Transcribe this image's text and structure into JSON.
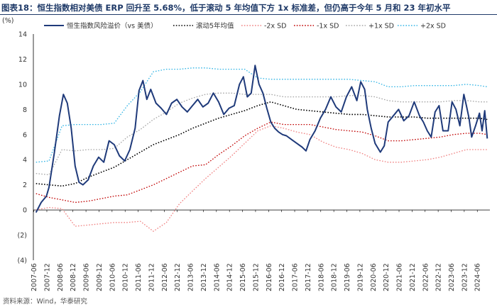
{
  "title": "图表18：恒生指数相对美债 ERP 回升至 5.68%，低于滚动 5 年均值下方 1x 标准差，但仍高于今年 5 月和 23 年初水平",
  "source": "资料来源：Wind，华泰研究",
  "colors": {
    "erp": "#1f3a7a",
    "mean": "#000000",
    "minus2": "#f08080",
    "minus1": "#c00000",
    "plus1": "#a6a6a6",
    "plus2": "#33b5e5",
    "title": "#1f3a68"
  },
  "chart_data": {
    "type": "line",
    "ylabel": "(%)",
    "ylim": [
      -4,
      14
    ],
    "yticks": [
      "(4)",
      "(2)",
      "0",
      "2",
      "4",
      "6",
      "8",
      "10",
      "12",
      "14"
    ],
    "x_tick_labels": [
      "2007-06",
      "2007-12",
      "2008-06",
      "2008-12",
      "2009-06",
      "2009-12",
      "2010-06",
      "2010-12",
      "2011-06",
      "2011-12",
      "2012-06",
      "2012-12",
      "2013-06",
      "2013-12",
      "2014-06",
      "2014-12",
      "2015-06",
      "2015-12",
      "2016-06",
      "2016-12",
      "2017-06",
      "2017-12",
      "2018-06",
      "2018-12",
      "2019-06",
      "2019-12",
      "2020-06",
      "2020-12",
      "2021-06",
      "2021-12",
      "2022-06",
      "2022-12",
      "2023-06",
      "2023-12",
      "2024-06"
    ],
    "grid": false,
    "legend_position": "top",
    "series": [
      {
        "name": "恒生指数风险溢价（vs 美债）",
        "key": "erp",
        "style": "solid",
        "x": [
          2007.5,
          2007.7,
          2007.9,
          2008.0,
          2008.2,
          2008.4,
          2008.55,
          2008.7,
          2008.85,
          2009.0,
          2009.15,
          2009.3,
          2009.5,
          2009.7,
          2009.9,
          2010.1,
          2010.3,
          2010.5,
          2010.7,
          2010.9,
          2011.1,
          2011.3,
          2011.45,
          2011.6,
          2011.75,
          2011.9,
          2012.1,
          2012.3,
          2012.5,
          2012.7,
          2012.9,
          2013.1,
          2013.3,
          2013.5,
          2013.7,
          2013.9,
          2014.1,
          2014.3,
          2014.5,
          2014.7,
          2014.9,
          2015.1,
          2015.3,
          2015.45,
          2015.6,
          2015.75,
          2015.9,
          2016.05,
          2016.2,
          2016.35,
          2016.5,
          2016.65,
          2016.8,
          2016.95,
          2017.1,
          2017.3,
          2017.5,
          2017.7,
          2017.85,
          2018.0,
          2018.2,
          2018.4,
          2018.6,
          2018.8,
          2019.0,
          2019.2,
          2019.4,
          2019.6,
          2019.8,
          2019.95,
          2020.1,
          2020.2,
          2020.35,
          2020.5,
          2020.7,
          2020.85,
          2021.0,
          2021.2,
          2021.4,
          2021.6,
          2021.8,
          2022.0,
          2022.2,
          2022.35,
          2022.5,
          2022.65,
          2022.8,
          2022.95,
          2023.1,
          2023.3,
          2023.45,
          2023.6,
          2023.75,
          2023.9,
          2024.0,
          2024.1,
          2024.2,
          2024.35,
          2024.5,
          2024.6,
          2024.7,
          2024.8
        ],
        "values": [
          -0.2,
          0.6,
          1.1,
          1.8,
          4.5,
          7.5,
          9.2,
          8.5,
          6.5,
          3.5,
          2.2,
          2.0,
          2.4,
          3.5,
          4.2,
          3.8,
          5.5,
          5.2,
          4.3,
          3.9,
          4.8,
          6.5,
          9.5,
          10.3,
          8.8,
          9.6,
          8.5,
          8.1,
          7.6,
          8.5,
          8.8,
          8.2,
          7.8,
          8.3,
          8.8,
          8.2,
          8.5,
          9.3,
          8.6,
          7.6,
          8.1,
          8.3,
          10.0,
          10.6,
          9.0,
          9.3,
          11.5,
          10.0,
          9.3,
          8.1,
          7.0,
          6.5,
          6.2,
          6.0,
          5.9,
          5.6,
          5.3,
          5.0,
          4.7,
          5.6,
          6.3,
          7.3,
          8.0,
          9.0,
          8.2,
          7.8,
          9.0,
          9.8,
          8.7,
          10.2,
          9.6,
          8.0,
          6.5,
          5.3,
          4.6,
          5.1,
          7.0,
          7.5,
          8.0,
          7.1,
          7.5,
          8.6,
          7.5,
          7.0,
          6.3,
          5.8,
          7.8,
          8.3,
          6.3,
          6.3,
          8.6,
          8.0,
          6.7,
          9.2,
          8.3,
          7.3,
          5.8,
          6.7,
          7.7,
          6.3,
          7.9,
          5.68
        ]
      },
      {
        "name": "滚动5年均值",
        "key": "mean",
        "style": "dotted",
        "x": [
          2007.5,
          2008.0,
          2008.5,
          2009.0,
          2009.5,
          2010.0,
          2010.5,
          2011.0,
          2011.5,
          2012.0,
          2012.5,
          2013.0,
          2013.5,
          2014.0,
          2014.5,
          2015.0,
          2015.5,
          2016.0,
          2016.5,
          2017.0,
          2017.5,
          2018.0,
          2018.5,
          2019.0,
          2019.5,
          2020.0,
          2020.5,
          2021.0,
          2021.5,
          2022.0,
          2022.5,
          2023.0,
          2023.5,
          2024.0,
          2024.5,
          2024.8
        ],
        "values": [
          2.1,
          2.0,
          1.9,
          2.1,
          2.6,
          3.0,
          3.4,
          4.0,
          4.6,
          5.2,
          5.6,
          6.0,
          6.5,
          6.9,
          7.3,
          7.6,
          7.9,
          8.3,
          8.6,
          8.3,
          8.0,
          7.9,
          7.8,
          7.7,
          7.6,
          7.6,
          7.5,
          7.4,
          7.4,
          7.4,
          7.3,
          7.3,
          7.3,
          7.3,
          7.3,
          7.2
        ]
      },
      {
        "name": "-2x SD",
        "key": "minus2",
        "style": "dotted",
        "x": [
          2007.5,
          2008.0,
          2008.5,
          2009.0,
          2009.5,
          2010.0,
          2010.5,
          2011.0,
          2011.5,
          2012.0,
          2012.5,
          2013.0,
          2013.5,
          2014.0,
          2014.5,
          2015.0,
          2015.5,
          2016.0,
          2016.5,
          2017.0,
          2017.5,
          2018.0,
          2018.5,
          2019.0,
          2019.5,
          2020.0,
          2020.5,
          2021.0,
          2021.5,
          2022.0,
          2022.5,
          2023.0,
          2023.5,
          2024.0,
          2024.5,
          2024.8
        ],
        "values": [
          0.0,
          0.2,
          0.1,
          -1.3,
          -1.2,
          -1.1,
          -1.0,
          -1.0,
          -0.9,
          -1.7,
          -1.0,
          0.5,
          1.5,
          2.5,
          3.4,
          4.3,
          5.3,
          6.3,
          6.7,
          6.5,
          6.2,
          6.0,
          5.4,
          5.0,
          4.8,
          4.5,
          4.0,
          3.8,
          3.8,
          3.9,
          4.0,
          4.2,
          4.5,
          4.8,
          4.8,
          4.8
        ]
      },
      {
        "name": "-1x SD",
        "key": "minus1",
        "style": "dotted",
        "x": [
          2007.5,
          2008.0,
          2008.5,
          2009.0,
          2009.5,
          2010.0,
          2010.5,
          2011.0,
          2011.5,
          2012.0,
          2012.5,
          2013.0,
          2013.5,
          2014.0,
          2014.5,
          2015.0,
          2015.5,
          2016.0,
          2016.5,
          2017.0,
          2017.5,
          2018.0,
          2018.5,
          2019.0,
          2019.5,
          2020.0,
          2020.5,
          2021.0,
          2021.5,
          2022.0,
          2022.5,
          2023.0,
          2023.5,
          2024.0,
          2024.5,
          2024.8
        ],
        "values": [
          1.3,
          1.0,
          0.8,
          0.6,
          0.7,
          0.9,
          1.1,
          1.2,
          1.6,
          2.0,
          2.5,
          3.0,
          3.5,
          3.6,
          4.4,
          5.1,
          5.9,
          6.5,
          7.0,
          6.8,
          6.8,
          6.8,
          6.6,
          6.4,
          6.3,
          6.2,
          5.9,
          5.5,
          5.5,
          5.6,
          5.7,
          5.8,
          6.0,
          6.1,
          6.1,
          6.0
        ]
      },
      {
        "name": "+1x SD",
        "key": "plus1",
        "style": "dotted",
        "x": [
          2007.5,
          2008.0,
          2008.5,
          2009.0,
          2009.5,
          2010.0,
          2010.5,
          2011.0,
          2011.5,
          2012.0,
          2012.5,
          2013.0,
          2013.5,
          2014.0,
          2014.5,
          2015.0,
          2015.5,
          2016.0,
          2016.5,
          2017.0,
          2017.5,
          2018.0,
          2018.5,
          2019.0,
          2019.5,
          2020.0,
          2020.5,
          2021.0,
          2021.5,
          2022.0,
          2022.5,
          2023.0,
          2023.5,
          2024.0,
          2024.5,
          2024.8
        ],
        "values": [
          2.9,
          2.8,
          4.8,
          4.7,
          4.8,
          4.8,
          4.9,
          5.8,
          6.4,
          7.2,
          7.8,
          8.5,
          8.9,
          9.2,
          9.3,
          9.3,
          9.2,
          9.2,
          9.2,
          9.0,
          9.0,
          9.0,
          9.0,
          9.0,
          9.1,
          9.1,
          9.0,
          8.7,
          8.6,
          8.6,
          8.6,
          8.6,
          8.7,
          8.7,
          8.6,
          8.6
        ]
      },
      {
        "name": "+2x SD",
        "key": "plus2",
        "style": "dotted",
        "x": [
          2007.5,
          2008.0,
          2008.5,
          2009.0,
          2009.5,
          2010.0,
          2010.5,
          2011.0,
          2011.5,
          2012.0,
          2012.5,
          2013.0,
          2013.5,
          2014.0,
          2014.5,
          2015.0,
          2015.5,
          2016.0,
          2016.5,
          2017.0,
          2017.5,
          2018.0,
          2018.5,
          2019.0,
          2019.5,
          2020.0,
          2020.5,
          2021.0,
          2021.5,
          2022.0,
          2022.5,
          2023.0,
          2023.5,
          2024.0,
          2024.5,
          2024.8
        ],
        "values": [
          3.8,
          3.9,
          6.7,
          6.8,
          6.8,
          6.8,
          6.9,
          8.3,
          9.4,
          11.0,
          11.2,
          11.2,
          11.3,
          11.3,
          11.2,
          11.2,
          11.2,
          10.5,
          10.4,
          10.4,
          10.4,
          10.4,
          10.4,
          10.4,
          10.4,
          10.3,
          10.2,
          9.8,
          9.8,
          9.9,
          9.9,
          9.9,
          9.9,
          10.0,
          9.9,
          9.8
        ]
      }
    ]
  }
}
